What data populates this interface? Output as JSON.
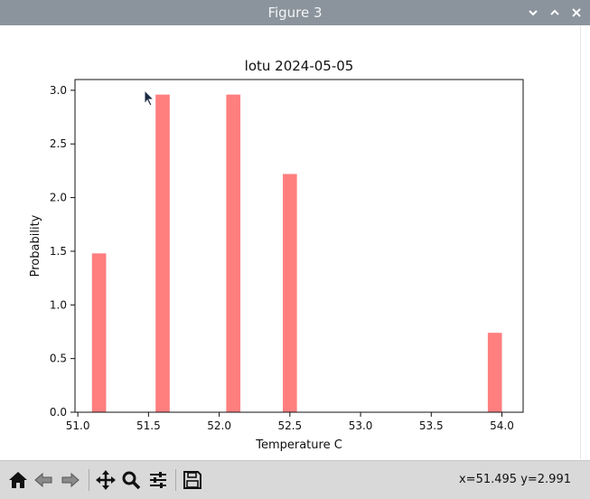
{
  "window": {
    "title": "Figure 3",
    "controls": [
      "chevron-down-icon",
      "chevron-up-icon",
      "close-icon"
    ]
  },
  "toolbar": {
    "buttons": [
      "home-icon",
      "back-icon",
      "forward-icon",
      "pan-icon",
      "zoom-icon",
      "configure-subplots-icon",
      "save-icon"
    ],
    "coords": "x=51.495 y=2.991"
  },
  "chart_data": {
    "type": "bar",
    "title": "lotu 2024-05-05",
    "xlabel": "Temperature C",
    "ylabel": "Probability",
    "xlim": [
      50.98,
      54.15
    ],
    "ylim": [
      0.0,
      3.1
    ],
    "bar_width": 0.1,
    "bar_color": "#ff7f7f",
    "x": [
      51.15,
      51.6,
      52.1,
      52.5,
      53.95
    ],
    "values": [
      1.48,
      2.96,
      2.96,
      2.22,
      0.74
    ],
    "xticks": [
      51.0,
      51.5,
      52.0,
      52.5,
      53.0,
      53.5,
      54.0
    ],
    "xtick_labels": [
      "51.0",
      "51.5",
      "52.0",
      "52.5",
      "53.0",
      "53.5",
      "54.0"
    ],
    "yticks": [
      0.0,
      0.5,
      1.0,
      1.5,
      2.0,
      2.5,
      3.0
    ],
    "ytick_labels": [
      "0.0",
      "0.5",
      "1.0",
      "1.5",
      "2.0",
      "2.5",
      "3.0"
    ],
    "grid": false
  }
}
